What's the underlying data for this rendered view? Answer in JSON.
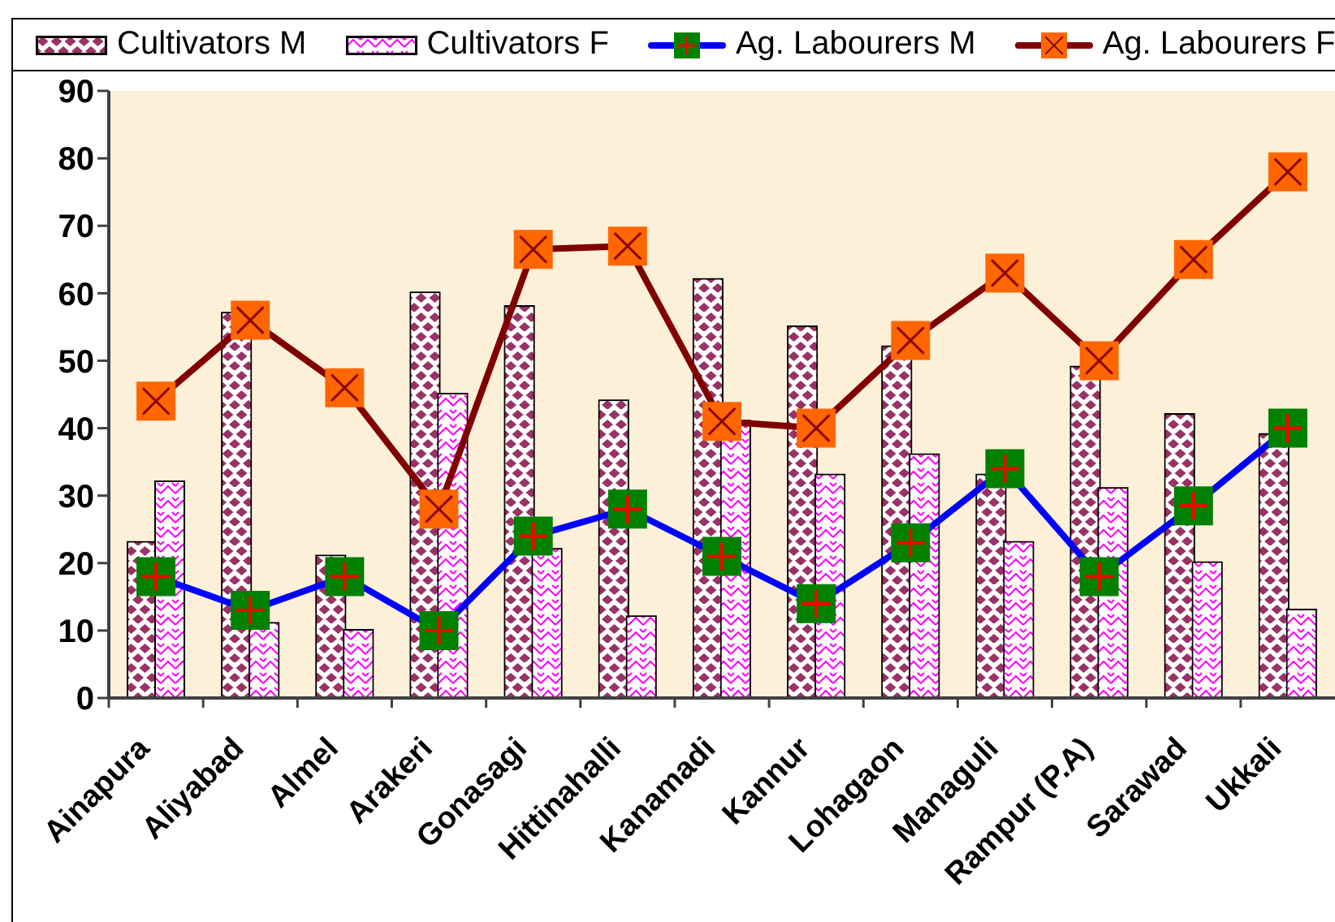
{
  "chart_data": {
    "type": "bar",
    "categories": [
      "Ainapura",
      "Aliyabad",
      "Almel",
      "Arakeri",
      "Gonasagi",
      "Hittinahalli",
      "Kanamadi",
      "Kannur",
      "Lohagaon",
      "Managuli",
      "Rampur (P.A)",
      "Sarawad",
      "Ukkali"
    ],
    "series": [
      {
        "name": "Cultivators M",
        "color": "#993366",
        "values": [
          23,
          57,
          21,
          60,
          58,
          44,
          62,
          55,
          52,
          33,
          49,
          42,
          39
        ]
      },
      {
        "name": "Cultivators F",
        "color": "#ff00ff",
        "values": [
          32,
          11,
          10,
          45,
          22,
          12,
          41,
          33,
          36,
          23,
          31,
          20,
          13
        ]
      },
      {
        "name": "Ag. Labourers M",
        "type": "line",
        "color": "#0000ff",
        "values": [
          18,
          13,
          18,
          10,
          24,
          28,
          21,
          14,
          23,
          34,
          18,
          28.5,
          40
        ]
      },
      {
        "name": "Ag. Labourers F",
        "type": "line",
        "color": "#800000",
        "values": [
          44,
          56,
          46,
          28,
          66.5,
          67,
          41,
          40,
          53,
          63,
          50,
          65,
          78
        ]
      }
    ],
    "ylim": [
      0,
      90
    ],
    "yticks": [
      0,
      10,
      20,
      30,
      40,
      50,
      60,
      70,
      80,
      90
    ],
    "legend": "top",
    "marker": "square"
  }
}
